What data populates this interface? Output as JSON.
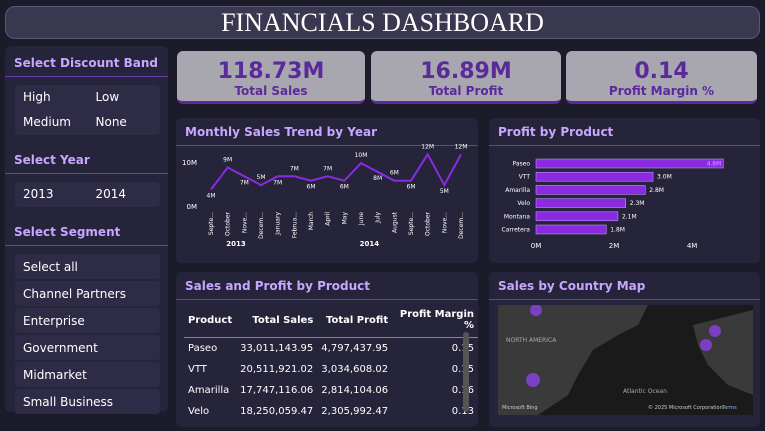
{
  "header": {
    "title": "FINANCIALS DASHBOARD"
  },
  "filters": [
    {
      "title": "Select Discount Band",
      "options": [
        "High",
        "Low",
        "Medium",
        "None"
      ]
    },
    {
      "title": "Select Year",
      "options": [
        "2013",
        "2014"
      ]
    },
    {
      "title": "Select Segment",
      "options": [
        "Select all",
        "Channel Partners",
        "Enterprise",
        "Government",
        "Midmarket",
        "Small Business"
      ]
    }
  ],
  "kpis": [
    {
      "value": "118.73M",
      "label": "Total Sales"
    },
    {
      "value": "16.89M",
      "label": "Total Profit"
    },
    {
      "value": "0.14",
      "label": "Profit Margin %"
    }
  ],
  "charts": [
    {
      "type": "line",
      "title": "Monthly Sales Trend by Year",
      "color": "#8a2be2",
      "categories": [
        "Septe...",
        "October",
        "Nove...",
        "Decem...",
        "January",
        "Februa...",
        "March",
        "April",
        "May",
        "June",
        "July",
        "August",
        "Septe...",
        "October",
        "Nove...",
        "Decem..."
      ],
      "groups": [
        "2013",
        "2014"
      ],
      "values": [
        4000000,
        9000000,
        7000000,
        5000000,
        7000000,
        7000000,
        6000000,
        7000000,
        6000000,
        10000000,
        8000000,
        6000000,
        6000000,
        12000000,
        5000000,
        12000000
      ],
      "value_labels": [
        "4M",
        "9M",
        "7M",
        "5M",
        "7M",
        "7M",
        "6M",
        "7M",
        "6M",
        "10M",
        "8M",
        "6M",
        "6M",
        "12M",
        "5M",
        "12M"
      ],
      "ylim": [
        0,
        13000000
      ],
      "yticks": [
        {
          "value": 0,
          "label": "0M"
        },
        {
          "value": 10000000,
          "label": "10M"
        }
      ]
    },
    {
      "type": "hbar",
      "title": "Profit by Product",
      "color": "#8a2be2",
      "categories": [
        "Paseo",
        "VTT",
        "Amarilla",
        "Velo",
        "Montana",
        "Carretera"
      ],
      "values": [
        4800000,
        3000000,
        2800000,
        2300000,
        2100000,
        1800000
      ],
      "value_labels": [
        "4.8M",
        "3.0M",
        "2.8M",
        "2.3M",
        "2.1M",
        "1.8M"
      ],
      "xlim": [
        0,
        5100000
      ],
      "xticks": [
        {
          "value": 0,
          "label": "0M"
        },
        {
          "value": 2000000,
          "label": "2M"
        },
        {
          "value": 4000000,
          "label": "4M"
        }
      ]
    }
  ],
  "table": {
    "title": "Sales and Profit by Product",
    "columns": [
      "Product",
      "Total Sales",
      "Total Profit",
      "Profit Margin %"
    ],
    "rows": [
      [
        "Paseo",
        "33,011,143.95",
        "4,797,437.95",
        "0.15"
      ],
      [
        "VTT",
        "20,511,921.02",
        "3,034,608.02",
        "0.15"
      ],
      [
        "Amarilla",
        "17,747,116.06",
        "2,814,104.06",
        "0.16"
      ],
      [
        "Velo",
        "18,250,059.47",
        "2,305,992.47",
        "0.13"
      ]
    ]
  },
  "map": {
    "title": "Sales by Country Map",
    "labels": [
      "NORTH AMERICA",
      "Atlantic Ocean"
    ],
    "brand": "Microsoft Bing",
    "copyright": "© 2025 Microsoft Corporation",
    "terms": "Terms"
  }
}
